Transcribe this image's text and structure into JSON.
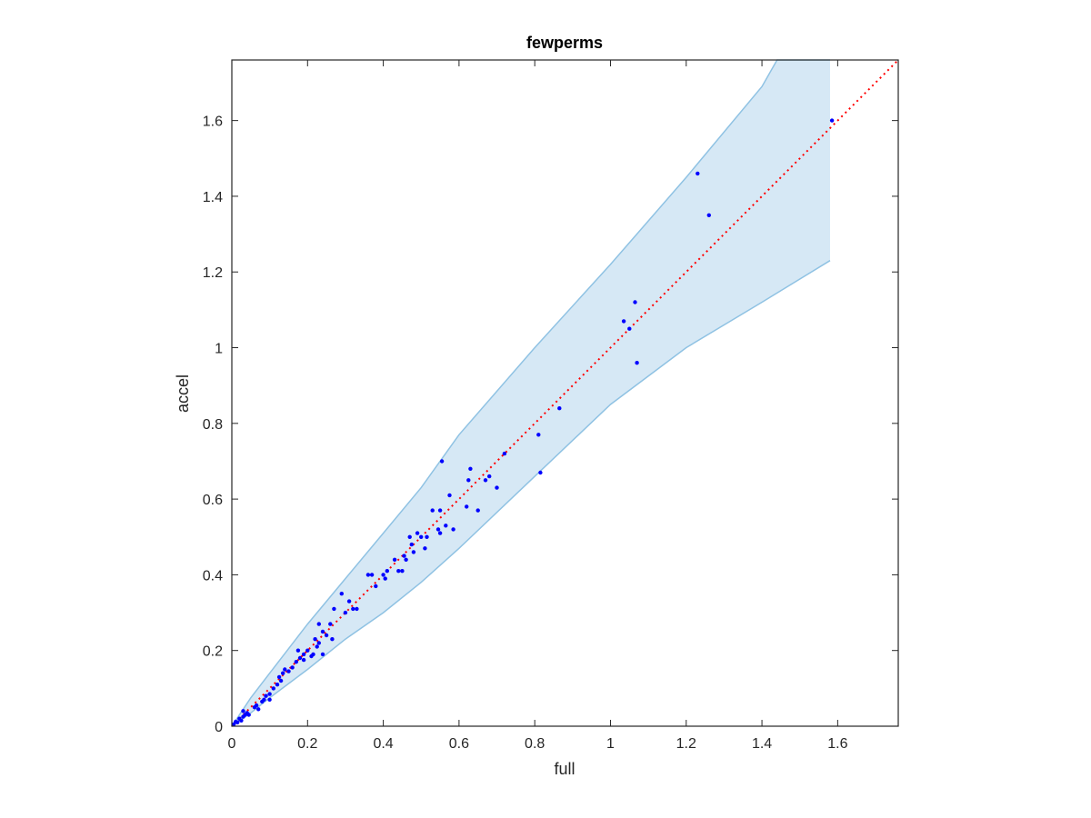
{
  "chart_data": {
    "type": "scatter",
    "title": "fewperms",
    "xlabel": "full",
    "ylabel": "accel",
    "xlim": [
      0,
      1.76
    ],
    "ylim": [
      0,
      1.76
    ],
    "xticks": [
      0,
      0.2,
      0.4,
      0.6,
      0.8,
      1,
      1.2,
      1.4,
      1.6
    ],
    "yticks": [
      0,
      0.2,
      0.4,
      0.6,
      0.8,
      1,
      1.2,
      1.4,
      1.6
    ],
    "xtick_labels": [
      "0",
      "0.2",
      "0.4",
      "0.6",
      "0.8",
      "1",
      "1.2",
      "1.4",
      "1.6"
    ],
    "ytick_labels": [
      "0",
      "0.2",
      "0.4",
      "0.6",
      "0.8",
      "1",
      "1.2",
      "1.4",
      "1.6"
    ],
    "grid": false,
    "colors": {
      "points": "#0000ff",
      "identity": "#ff0000",
      "band_fill": "#d6e8f5",
      "band_edge": "#8fc2e3",
      "axis": "#262626"
    },
    "identity_line": {
      "x": [
        0,
        1.76
      ],
      "y": [
        0,
        1.76
      ]
    },
    "band": {
      "upper": [
        [
          0,
          0
        ],
        [
          0.05,
          0.075
        ],
        [
          0.1,
          0.14
        ],
        [
          0.2,
          0.27
        ],
        [
          0.3,
          0.39
        ],
        [
          0.4,
          0.51
        ],
        [
          0.5,
          0.63
        ],
        [
          0.6,
          0.77
        ],
        [
          0.8,
          1.0
        ],
        [
          1.0,
          1.22
        ],
        [
          1.2,
          1.45
        ],
        [
          1.4,
          1.69
        ],
        [
          1.44,
          1.76
        ],
        [
          1.58,
          1.76
        ]
      ],
      "lower": [
        [
          0,
          0
        ],
        [
          0.05,
          0.035
        ],
        [
          0.1,
          0.075
        ],
        [
          0.2,
          0.15
        ],
        [
          0.3,
          0.23
        ],
        [
          0.4,
          0.3
        ],
        [
          0.5,
          0.38
        ],
        [
          0.6,
          0.47
        ],
        [
          0.8,
          0.66
        ],
        [
          1.0,
          0.85
        ],
        [
          1.2,
          1.0
        ],
        [
          1.4,
          1.12
        ],
        [
          1.58,
          1.23
        ]
      ]
    },
    "points": [
      [
        0.005,
        0.005
      ],
      [
        0.01,
        0.012
      ],
      [
        0.015,
        0.01
      ],
      [
        0.02,
        0.02
      ],
      [
        0.025,
        0.015
      ],
      [
        0.03,
        0.025
      ],
      [
        0.035,
        0.03
      ],
      [
        0.04,
        0.035
      ],
      [
        0.03,
        0.04
      ],
      [
        0.045,
        0.03
      ],
      [
        0.06,
        0.05
      ],
      [
        0.065,
        0.055
      ],
      [
        0.07,
        0.045
      ],
      [
        0.08,
        0.065
      ],
      [
        0.085,
        0.07
      ],
      [
        0.09,
        0.08
      ],
      [
        0.1,
        0.085
      ],
      [
        0.1,
        0.07
      ],
      [
        0.11,
        0.1
      ],
      [
        0.12,
        0.11
      ],
      [
        0.125,
        0.13
      ],
      [
        0.13,
        0.12
      ],
      [
        0.135,
        0.14
      ],
      [
        0.14,
        0.15
      ],
      [
        0.15,
        0.145
      ],
      [
        0.16,
        0.155
      ],
      [
        0.17,
        0.17
      ],
      [
        0.175,
        0.2
      ],
      [
        0.18,
        0.18
      ],
      [
        0.19,
        0.19
      ],
      [
        0.19,
        0.175
      ],
      [
        0.2,
        0.2
      ],
      [
        0.21,
        0.185
      ],
      [
        0.215,
        0.19
      ],
      [
        0.22,
        0.23
      ],
      [
        0.225,
        0.21
      ],
      [
        0.23,
        0.22
      ],
      [
        0.23,
        0.27
      ],
      [
        0.24,
        0.25
      ],
      [
        0.24,
        0.19
      ],
      [
        0.25,
        0.24
      ],
      [
        0.26,
        0.27
      ],
      [
        0.265,
        0.23
      ],
      [
        0.27,
        0.31
      ],
      [
        0.29,
        0.35
      ],
      [
        0.3,
        0.3
      ],
      [
        0.31,
        0.33
      ],
      [
        0.32,
        0.31
      ],
      [
        0.33,
        0.31
      ],
      [
        0.36,
        0.4
      ],
      [
        0.37,
        0.4
      ],
      [
        0.38,
        0.37
      ],
      [
        0.4,
        0.4
      ],
      [
        0.405,
        0.39
      ],
      [
        0.41,
        0.41
      ],
      [
        0.43,
        0.44
      ],
      [
        0.44,
        0.41
      ],
      [
        0.45,
        0.41
      ],
      [
        0.455,
        0.45
      ],
      [
        0.46,
        0.44
      ],
      [
        0.47,
        0.5
      ],
      [
        0.475,
        0.48
      ],
      [
        0.48,
        0.46
      ],
      [
        0.49,
        0.51
      ],
      [
        0.5,
        0.5
      ],
      [
        0.51,
        0.47
      ],
      [
        0.515,
        0.5
      ],
      [
        0.53,
        0.57
      ],
      [
        0.545,
        0.52
      ],
      [
        0.55,
        0.51
      ],
      [
        0.55,
        0.57
      ],
      [
        0.555,
        0.7
      ],
      [
        0.565,
        0.53
      ],
      [
        0.575,
        0.61
      ],
      [
        0.585,
        0.52
      ],
      [
        0.62,
        0.58
      ],
      [
        0.625,
        0.65
      ],
      [
        0.63,
        0.68
      ],
      [
        0.65,
        0.57
      ],
      [
        0.67,
        0.65
      ],
      [
        0.68,
        0.66
      ],
      [
        0.7,
        0.63
      ],
      [
        0.72,
        0.72
      ],
      [
        0.81,
        0.77
      ],
      [
        0.815,
        0.67
      ],
      [
        0.865,
        0.84
      ],
      [
        1.035,
        1.07
      ],
      [
        1.05,
        1.05
      ],
      [
        1.065,
        1.12
      ],
      [
        1.07,
        0.96
      ],
      [
        1.23,
        1.46
      ],
      [
        1.26,
        1.35
      ],
      [
        1.585,
        1.6
      ]
    ]
  }
}
